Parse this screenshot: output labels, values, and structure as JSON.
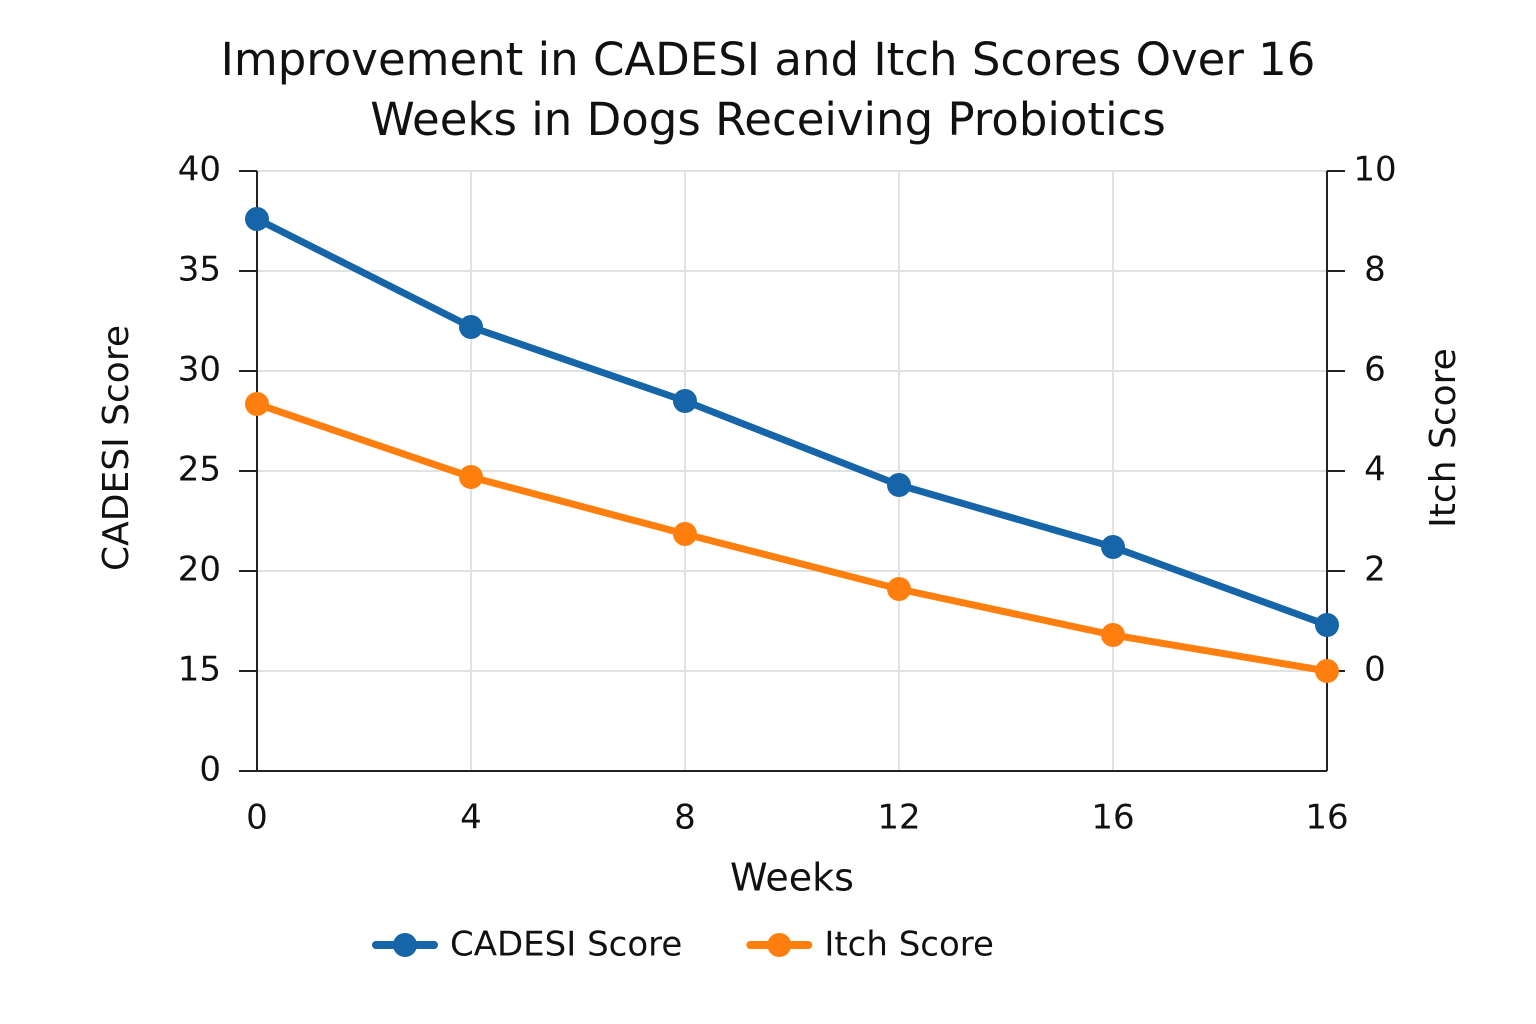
{
  "chart_data": {
    "type": "line",
    "title": "Improvement in CADESI and Itch Scores Over 16 Weeks in Dogs Receiving Probiotics",
    "xlabel": "Weeks",
    "ylabel": "CADESI Score",
    "y2label": "Itch Score",
    "categories": [
      "0",
      "4",
      "8",
      "12",
      "16",
      "16"
    ],
    "series": [
      {
        "name": "CADESI Score",
        "color": "#1565a8",
        "values": [
          37.6,
          32.2,
          28.5,
          24.3,
          21.2,
          17.3
        ]
      },
      {
        "name": "Itch Score",
        "color": "#ff7f0e",
        "axis": "y2",
        "values": [
          5.34,
          3.88,
          2.74,
          1.64,
          0.72,
          0
        ]
      }
    ],
    "ylim": [
      0,
      40
    ],
    "yticks": [
      0,
      15,
      20,
      25,
      30,
      35,
      40
    ],
    "y2lim": [
      -2,
      10
    ],
    "y2ticks": [
      0,
      2,
      4,
      6,
      8,
      10
    ],
    "grid": true,
    "legend": "bottom"
  }
}
